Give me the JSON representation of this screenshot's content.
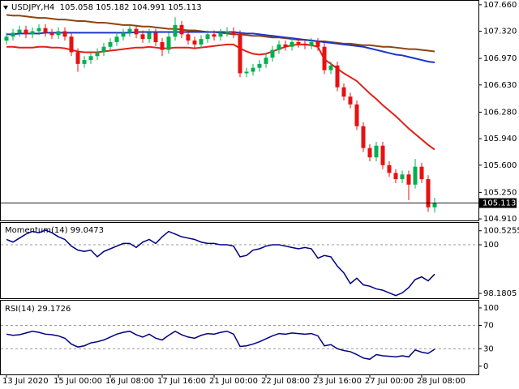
{
  "chart_data": [
    {
      "type": "candlestick",
      "title": "USDJPY,H4  105.058 105.182 104.991 105.113",
      "categories": [
        "13 Jul 2020",
        null,
        null,
        null,
        null,
        null,
        null,
        null,
        "15 Jul 00:00",
        null,
        null,
        null,
        null,
        null,
        null,
        null,
        "16 Jul 08:00",
        null,
        null,
        null,
        null,
        null,
        null,
        null,
        "17 Jul 16:00",
        null,
        null,
        null,
        null,
        null,
        null,
        null,
        "21 Jul 00:00",
        null,
        null,
        null,
        null,
        null,
        null,
        null,
        "22 Jul 08:00",
        null,
        null,
        null,
        null,
        null,
        null,
        null,
        "23 Jul 16:00",
        null,
        null,
        null,
        null,
        null,
        null,
        null,
        "27 Jul 00:00",
        null,
        null,
        null,
        null,
        null,
        null,
        null,
        "28 Jul 08:00",
        null,
        null
      ],
      "open": [
        107.2,
        107.25,
        107.3,
        107.34,
        107.28,
        107.32,
        107.36,
        107.3,
        107.27,
        107.32,
        107.25,
        107.05,
        106.9,
        106.95,
        107.0,
        107.05,
        107.12,
        107.18,
        107.25,
        107.3,
        107.35,
        107.28,
        107.22,
        107.3,
        107.18,
        107.08,
        107.25,
        107.4,
        107.28,
        107.2,
        107.15,
        107.22,
        107.28,
        107.25,
        107.3,
        107.32,
        107.28,
        106.78,
        106.8,
        106.85,
        106.9,
        106.98,
        107.08,
        107.15,
        107.12,
        107.18,
        107.16,
        107.14,
        107.18,
        107.12,
        106.82,
        106.88,
        106.6,
        106.48,
        106.38,
        106.1,
        105.82,
        105.7,
        105.85,
        105.6,
        105.5,
        105.42,
        105.48,
        105.35,
        105.58,
        105.42,
        105.058
      ],
      "high": [
        107.3,
        107.35,
        107.39,
        107.39,
        107.37,
        107.41,
        107.41,
        107.35,
        107.37,
        107.37,
        107.3,
        107.1,
        107.0,
        107.05,
        107.1,
        107.17,
        107.23,
        107.3,
        107.35,
        107.4,
        107.4,
        107.33,
        107.35,
        107.35,
        107.23,
        107.3,
        107.5,
        107.45,
        107.33,
        107.25,
        107.27,
        107.33,
        107.33,
        107.35,
        107.37,
        107.37,
        107.33,
        106.85,
        106.9,
        106.95,
        107.03,
        107.13,
        107.2,
        107.2,
        107.23,
        107.23,
        107.21,
        107.23,
        107.23,
        107.17,
        106.93,
        106.93,
        106.65,
        106.53,
        106.43,
        106.15,
        105.87,
        105.9,
        105.9,
        105.65,
        105.55,
        105.53,
        105.53,
        105.68,
        105.63,
        105.47,
        105.182
      ],
      "low": [
        107.15,
        107.2,
        107.25,
        107.23,
        107.23,
        107.27,
        107.25,
        107.22,
        107.22,
        107.2,
        107.0,
        106.8,
        106.85,
        106.9,
        106.95,
        107.0,
        107.07,
        107.13,
        107.2,
        107.25,
        107.23,
        107.17,
        107.17,
        107.13,
        107.0,
        107.03,
        107.2,
        107.23,
        107.15,
        107.1,
        107.1,
        107.17,
        107.2,
        107.2,
        107.25,
        107.23,
        106.73,
        106.73,
        106.75,
        106.8,
        106.85,
        106.93,
        107.03,
        107.07,
        107.07,
        107.11,
        107.09,
        107.09,
        107.07,
        106.77,
        106.77,
        106.55,
        106.43,
        106.33,
        106.05,
        105.77,
        105.65,
        105.65,
        105.55,
        105.45,
        105.37,
        105.37,
        105.15,
        105.3,
        105.37,
        105.0,
        104.991
      ],
      "close": [
        107.25,
        107.3,
        107.34,
        107.28,
        107.32,
        107.36,
        107.3,
        107.27,
        107.32,
        107.25,
        107.05,
        106.9,
        106.95,
        107.0,
        107.05,
        107.12,
        107.18,
        107.25,
        107.3,
        107.35,
        107.28,
        107.22,
        107.3,
        107.18,
        107.08,
        107.25,
        107.4,
        107.28,
        107.2,
        107.15,
        107.22,
        107.28,
        107.25,
        107.3,
        107.32,
        107.28,
        106.78,
        106.8,
        106.85,
        106.9,
        106.98,
        107.08,
        107.15,
        107.12,
        107.18,
        107.16,
        107.14,
        107.18,
        107.12,
        106.82,
        106.88,
        106.6,
        106.48,
        106.38,
        106.1,
        105.82,
        105.7,
        105.85,
        105.6,
        105.5,
        105.42,
        105.48,
        105.35,
        105.58,
        105.42,
        105.058,
        105.113
      ],
      "up_color": "#00b050",
      "down_color": "#e81010",
      "series": [
        {
          "color": "#8b4513",
          "values": [
            107.53,
            107.52,
            107.52,
            107.51,
            107.5,
            107.49,
            107.49,
            107.48,
            107.47,
            107.47,
            107.46,
            107.45,
            107.45,
            107.44,
            107.43,
            107.43,
            107.42,
            107.41,
            107.4,
            107.4,
            107.39,
            107.38,
            107.38,
            107.37,
            107.36,
            107.35,
            107.35,
            107.34,
            107.33,
            107.33,
            107.32,
            107.31,
            107.31,
            107.3,
            107.29,
            107.28,
            107.28,
            107.27,
            107.26,
            107.26,
            107.25,
            107.24,
            107.24,
            107.23,
            107.22,
            107.21,
            107.21,
            107.2,
            107.19,
            107.19,
            107.18,
            107.17,
            107.16,
            107.16,
            107.15,
            107.14,
            107.14,
            107.13,
            107.12,
            107.12,
            107.11,
            107.1,
            107.09,
            107.09,
            107.08,
            107.07,
            107.06
          ]
        },
        {
          "color": "#1c35c8",
          "values": [
            107.28,
            107.28,
            107.29,
            107.29,
            107.29,
            107.29,
            107.3,
            107.3,
            107.3,
            107.3,
            107.3,
            107.3,
            107.3,
            107.3,
            107.3,
            107.3,
            107.3,
            107.3,
            107.3,
            107.3,
            107.31,
            107.31,
            107.31,
            107.31,
            107.31,
            107.31,
            107.31,
            107.31,
            107.31,
            107.31,
            107.31,
            107.31,
            107.31,
            107.31,
            107.31,
            107.31,
            107.3,
            107.29,
            107.29,
            107.28,
            107.27,
            107.26,
            107.25,
            107.24,
            107.23,
            107.22,
            107.21,
            107.2,
            107.19,
            107.18,
            107.17,
            107.16,
            107.15,
            107.14,
            107.13,
            107.12,
            107.1,
            107.08,
            107.06,
            107.04,
            107.02,
            107.01,
            106.99,
            106.97,
            106.95,
            106.93,
            106.92
          ]
        },
        {
          "color": "#e0201a",
          "values": [
            107.12,
            107.12,
            107.11,
            107.11,
            107.11,
            107.12,
            107.12,
            107.11,
            107.11,
            107.1,
            107.08,
            107.06,
            107.05,
            107.05,
            107.05,
            107.06,
            107.07,
            107.08,
            107.09,
            107.1,
            107.11,
            107.11,
            107.12,
            107.11,
            107.1,
            107.1,
            107.11,
            107.11,
            107.11,
            107.1,
            107.11,
            107.12,
            107.13,
            107.14,
            107.15,
            107.15,
            107.1,
            107.06,
            107.03,
            107.02,
            107.03,
            107.06,
            107.09,
            107.12,
            107.14,
            107.15,
            107.15,
            107.14,
            107.12,
            106.96,
            106.9,
            106.84,
            106.78,
            106.73,
            106.68,
            106.6,
            106.52,
            106.45,
            106.37,
            106.3,
            106.23,
            106.15,
            106.07,
            106.0,
            105.93,
            105.86,
            105.8
          ]
        }
      ],
      "ylim": [
        104.89,
        107.7
      ],
      "yticks": [
        {
          "value": 107.66,
          "label": "107.660"
        },
        {
          "value": 107.32,
          "label": "107.320"
        },
        {
          "value": 106.97,
          "label": "106.970"
        },
        {
          "value": 106.63,
          "label": "106.630"
        },
        {
          "value": 106.28,
          "label": "106.280"
        },
        {
          "value": 105.94,
          "label": "105.940"
        },
        {
          "value": 105.6,
          "label": "105.600"
        },
        {
          "value": 105.25,
          "label": "105.250"
        },
        {
          "value": 104.91,
          "label": "104.910"
        }
      ]
    },
    {
      "type": "line",
      "title": "Momentum(14) 99.0473",
      "color": "#000080",
      "values": [
        100.2,
        100.1,
        100.25,
        100.4,
        100.5,
        100.45,
        100.55,
        100.45,
        100.3,
        100.2,
        99.95,
        99.8,
        99.75,
        99.8,
        99.55,
        99.75,
        99.85,
        99.95,
        100.05,
        100.05,
        99.9,
        100.1,
        100.2,
        100.05,
        100.3,
        100.5,
        100.4,
        100.3,
        100.25,
        100.2,
        100.1,
        100.05,
        100.05,
        100.0,
        100.0,
        99.95,
        99.55,
        99.6,
        99.8,
        99.85,
        99.95,
        100.0,
        100.0,
        99.95,
        99.9,
        99.85,
        99.9,
        99.85,
        99.5,
        99.6,
        99.55,
        99.2,
        98.95,
        98.55,
        98.75,
        98.5,
        98.45,
        98.35,
        98.3,
        98.2,
        98.1,
        98.2,
        98.4,
        98.7,
        98.8,
        98.65,
        98.9
      ],
      "ylim": [
        98.0,
        100.79
      ],
      "yticks": [
        100.5255,
        100,
        98.1805
      ],
      "levels": [
        100
      ]
    },
    {
      "type": "line",
      "title": "RSI(14) 29.1726",
      "color": "#000080",
      "values": [
        55,
        53,
        54,
        57,
        60,
        58,
        55,
        54,
        52,
        48,
        38,
        33,
        35,
        40,
        42,
        45,
        50,
        55,
        58,
        60,
        54,
        50,
        55,
        48,
        45,
        53,
        60,
        54,
        50,
        48,
        53,
        56,
        55,
        58,
        60,
        55,
        34,
        35,
        38,
        42,
        47,
        52,
        56,
        55,
        57,
        56,
        55,
        56,
        52,
        35,
        37,
        30,
        27,
        25,
        20,
        14,
        12,
        20,
        18,
        17,
        16,
        18,
        16,
        28,
        24,
        22,
        29.17
      ],
      "ylim": [
        -14,
        111
      ],
      "yticks": [
        100,
        70,
        30,
        0
      ],
      "levels": [
        70,
        30
      ]
    }
  ]
}
